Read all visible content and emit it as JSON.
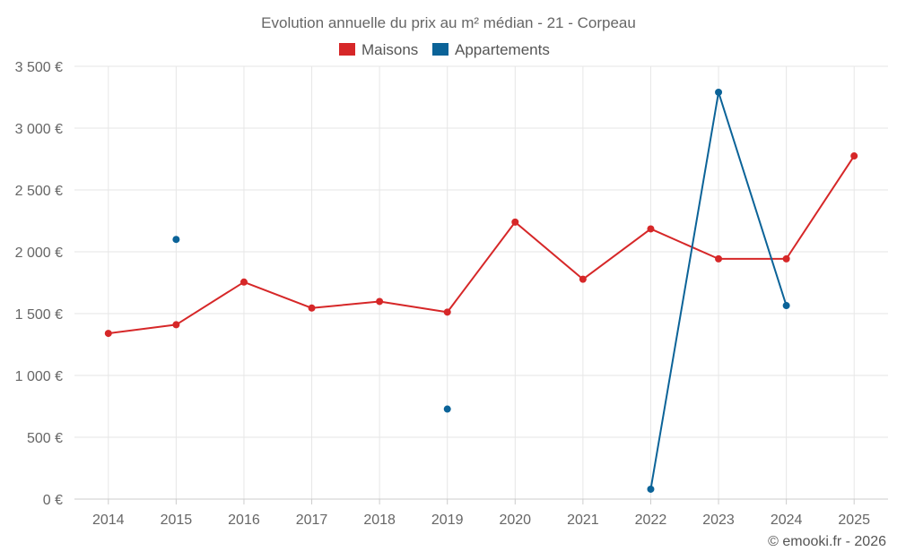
{
  "chart_data": {
    "type": "line",
    "title": "Evolution annuelle du prix au m² médian - 21 - Corpeau",
    "categories": [
      "2014",
      "2015",
      "2016",
      "2017",
      "2018",
      "2019",
      "2020",
      "2021",
      "2022",
      "2023",
      "2024",
      "2025"
    ],
    "ylim": [
      0,
      3500
    ],
    "yticks": [
      0,
      500,
      1000,
      1500,
      2000,
      2500,
      3000,
      3500
    ],
    "ytick_labels": [
      "0 €",
      "500 €",
      "1 000 €",
      "1 500 €",
      "2 000 €",
      "2 500 €",
      "3 000 €",
      "3 500 €"
    ],
    "grid": true,
    "legend_position": "top-center",
    "series": [
      {
        "name": "Maisons",
        "color": "#d62728",
        "values": [
          1340,
          1410,
          1755,
          1545,
          1598,
          1512,
          2240,
          1778,
          2185,
          1943,
          1943,
          2775
        ]
      },
      {
        "name": "Appartements",
        "color": "#0b6398",
        "values": [
          null,
          2100,
          null,
          null,
          null,
          728,
          null,
          null,
          80,
          3290,
          1565,
          null
        ]
      }
    ]
  },
  "credit": "© emooki.fr - 2026"
}
